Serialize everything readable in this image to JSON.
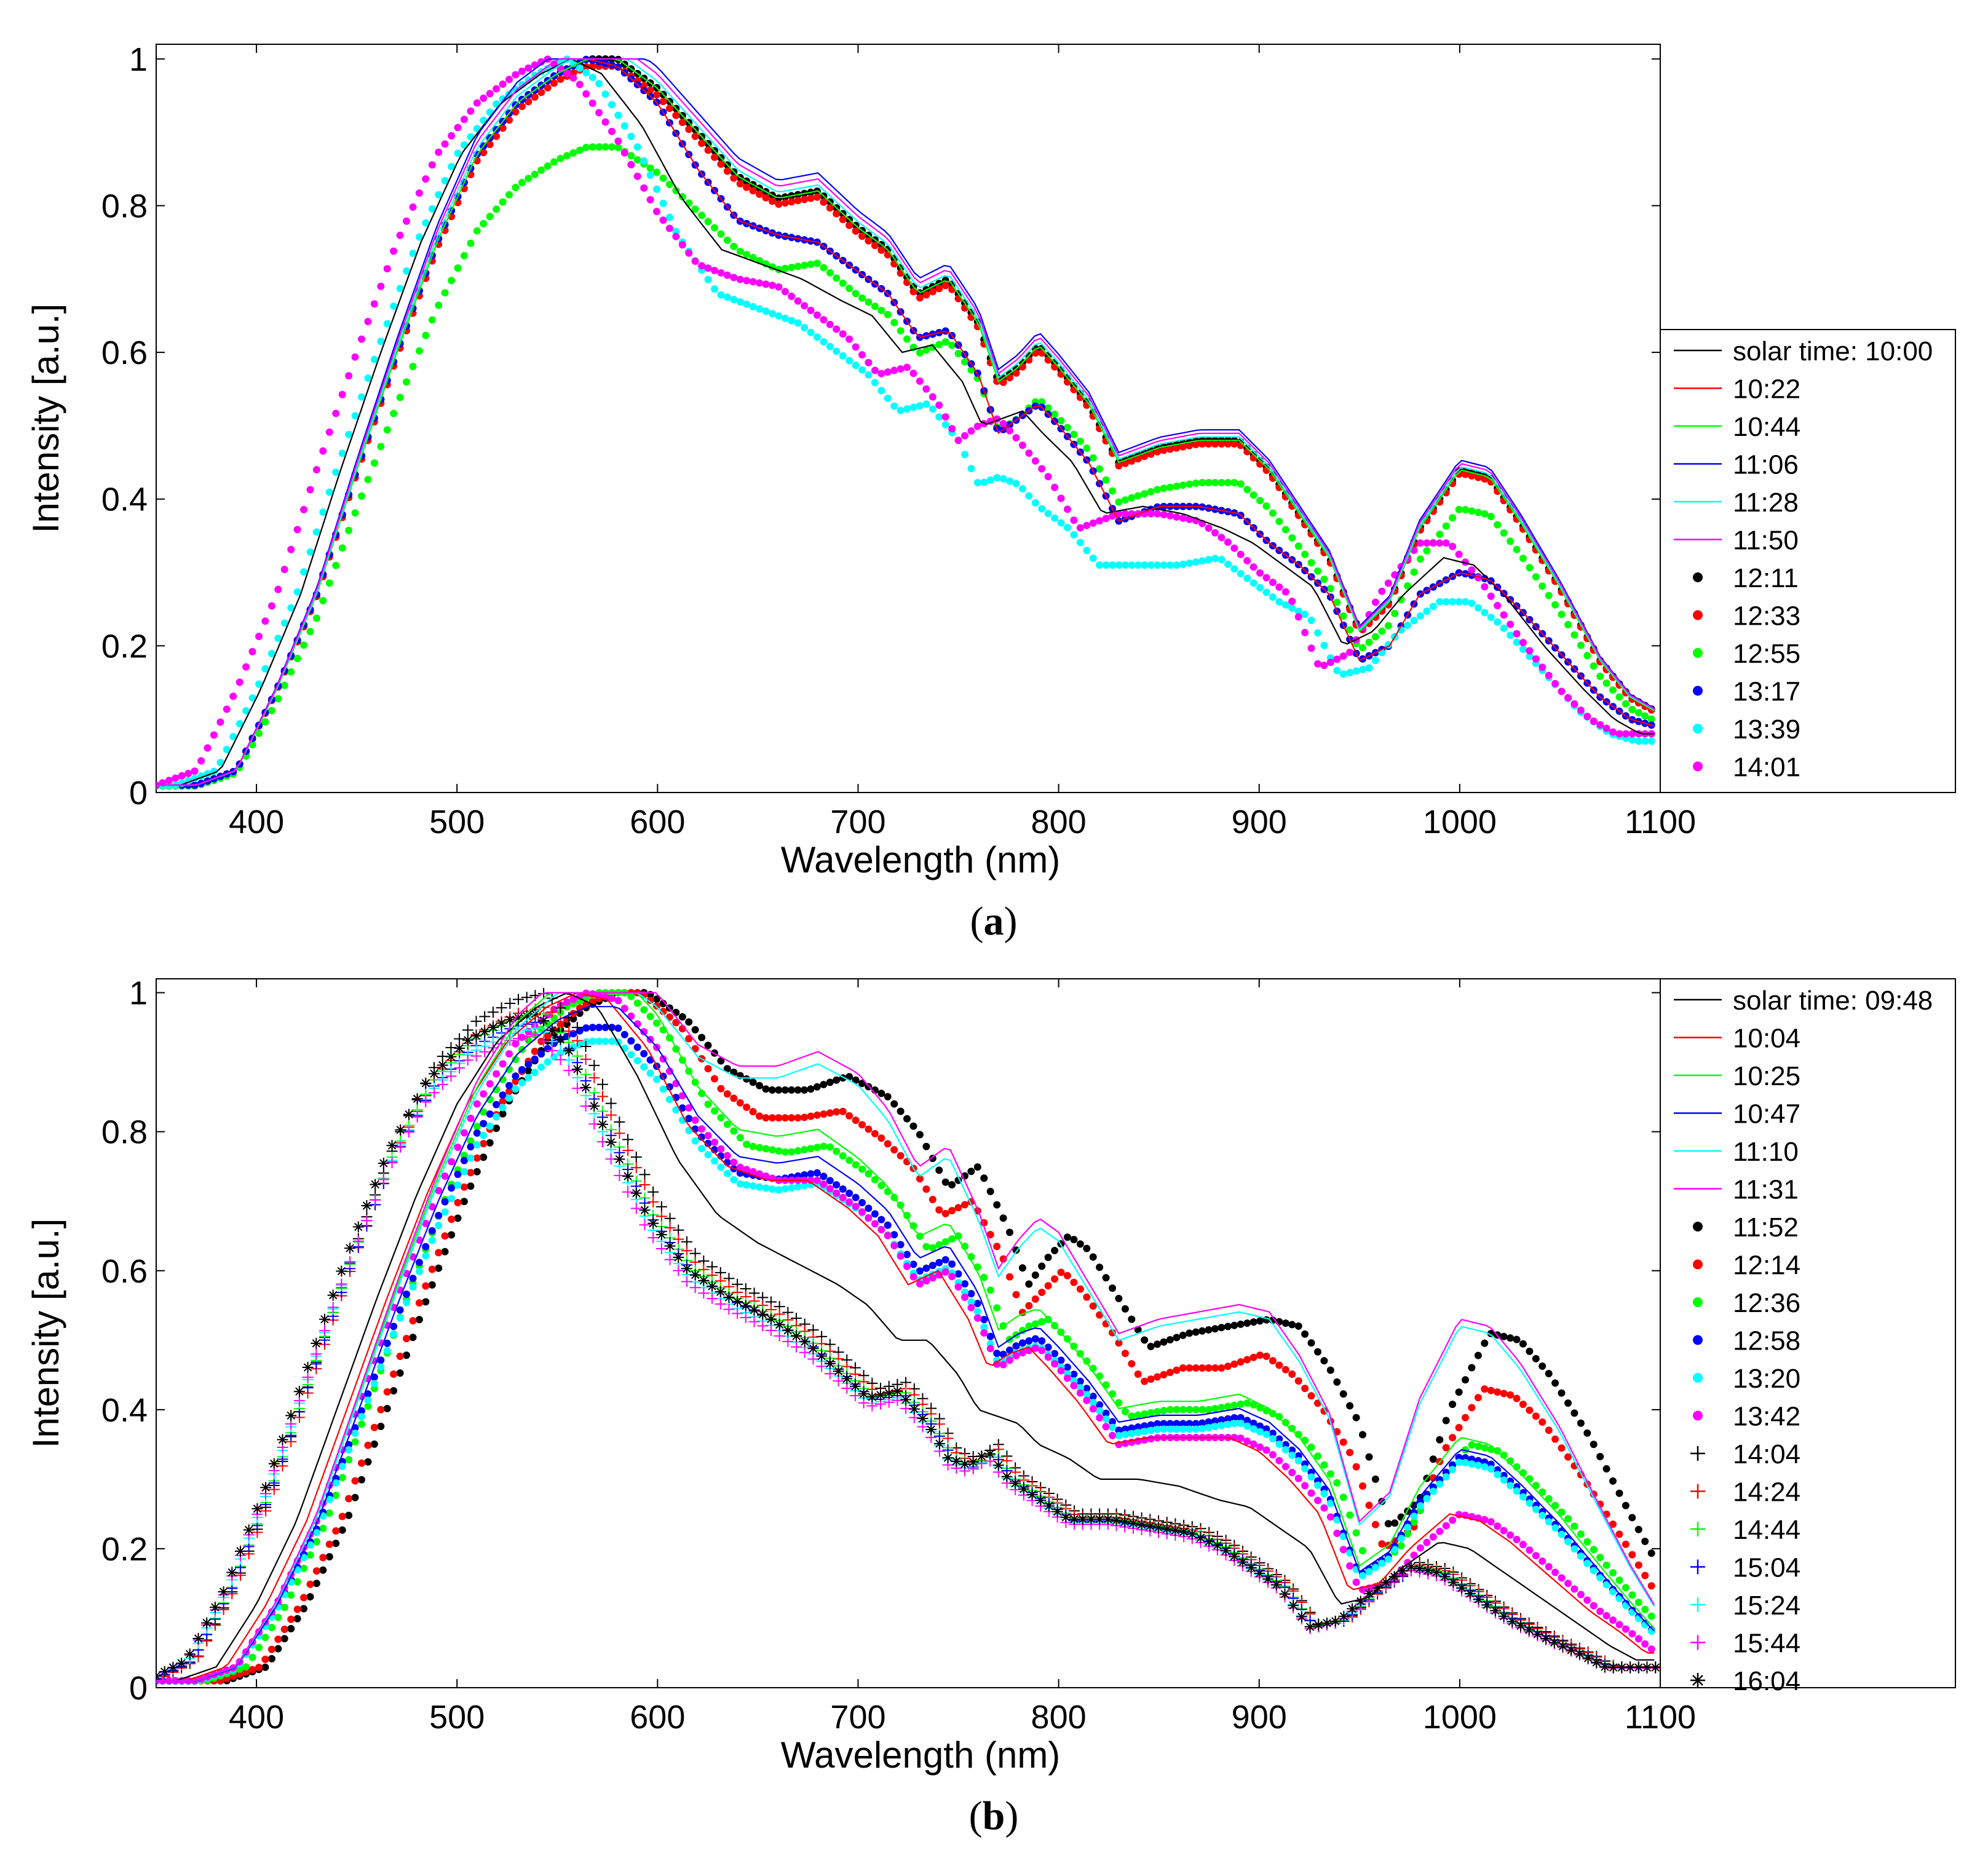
{
  "chart_data": [
    {
      "type": "line",
      "panel_label": "a",
      "xlabel": "Wavelength (nm)",
      "ylabel": "Intensity [a.u.]",
      "xlim": [
        350,
        1100
      ],
      "ylim": [
        0,
        1.02
      ],
      "xticks": [
        400,
        500,
        600,
        700,
        800,
        900,
        1000,
        1100
      ],
      "yticks": [
        0,
        0.2,
        0.4,
        0.6,
        0.8,
        1
      ],
      "ytick_labels": [
        "0",
        "0.2",
        "0.4",
        "0.6",
        "0.8",
        "1"
      ],
      "legend_position": "right",
      "x": [
        350,
        370,
        390,
        410,
        430,
        450,
        470,
        490,
        510,
        530,
        550,
        565,
        580,
        600,
        620,
        640,
        660,
        680,
        700,
        715,
        730,
        745,
        760,
        770,
        780,
        790,
        800,
        815,
        830,
        850,
        870,
        890,
        905,
        920,
        935,
        950,
        965,
        980,
        1000,
        1015,
        1030,
        1050,
        1070,
        1085,
        1098
      ],
      "series": [
        {
          "name": "solar time: 10:00",
          "color": "#000000",
          "style": "line",
          "scale": 1.0,
          "shift": -8,
          "shape": "early"
        },
        {
          "name": "10:22",
          "color": "#ff0000",
          "style": "line",
          "scale": 1.0,
          "shift": 0,
          "shape": "mid"
        },
        {
          "name": "10:44",
          "color": "#00ff00",
          "style": "line",
          "scale": 1.0,
          "shift": 0,
          "shape": "high"
        },
        {
          "name": "11:06",
          "color": "#0000ff",
          "style": "line",
          "scale": 1.03,
          "shift": 0,
          "shape": "high"
        },
        {
          "name": "11:28",
          "color": "#00ffff",
          "style": "line",
          "scale": 1.01,
          "shift": 0,
          "shape": "high"
        },
        {
          "name": "11:50",
          "color": "#ff00ff",
          "style": "line",
          "scale": 1.02,
          "shift": 0,
          "shape": "high"
        },
        {
          "name": "12:11",
          "color": "#000000",
          "style": "dot",
          "scale": 1.0,
          "shift": 0,
          "shape": "high"
        },
        {
          "name": "12:33",
          "color": "#ff0000",
          "style": "dot",
          "scale": 0.99,
          "shift": 0,
          "shape": "high"
        },
        {
          "name": "12:55",
          "color": "#00ff00",
          "style": "dot",
          "scale": 0.88,
          "shift": 0,
          "shape": "high"
        },
        {
          "name": "13:17",
          "color": "#0000ff",
          "style": "dot",
          "scale": 1.0,
          "shift": 0,
          "shape": "mid"
        },
        {
          "name": "13:39",
          "color": "#00ffff",
          "style": "dot",
          "scale": 1.0,
          "shift": -10,
          "shape": "low"
        },
        {
          "name": "14:01",
          "color": "#ff00ff",
          "style": "dot",
          "scale": 1.0,
          "shift": -20,
          "shape": "lowmid"
        }
      ],
      "shapes": {
        "high": [
          0.01,
          0.01,
          0.03,
          0.14,
          0.27,
          0.44,
          0.6,
          0.75,
          0.87,
          0.94,
          0.98,
          1.0,
          1.0,
          0.96,
          0.9,
          0.84,
          0.81,
          0.82,
          0.77,
          0.74,
          0.68,
          0.7,
          0.64,
          0.56,
          0.58,
          0.61,
          0.58,
          0.53,
          0.45,
          0.47,
          0.48,
          0.48,
          0.44,
          0.38,
          0.32,
          0.22,
          0.26,
          0.36,
          0.44,
          0.43,
          0.37,
          0.28,
          0.18,
          0.13,
          0.11
        ],
        "mid": [
          0.01,
          0.01,
          0.03,
          0.14,
          0.27,
          0.44,
          0.6,
          0.75,
          0.87,
          0.94,
          0.98,
          1.0,
          0.99,
          0.94,
          0.85,
          0.78,
          0.76,
          0.75,
          0.71,
          0.68,
          0.62,
          0.63,
          0.57,
          0.49,
          0.51,
          0.53,
          0.5,
          0.45,
          0.37,
          0.39,
          0.39,
          0.38,
          0.34,
          0.31,
          0.27,
          0.18,
          0.2,
          0.27,
          0.3,
          0.29,
          0.25,
          0.19,
          0.13,
          0.1,
          0.09
        ],
        "early": [
          0.01,
          0.01,
          0.03,
          0.14,
          0.27,
          0.44,
          0.6,
          0.75,
          0.87,
          0.94,
          0.98,
          1.0,
          0.98,
          0.91,
          0.81,
          0.74,
          0.72,
          0.7,
          0.67,
          0.65,
          0.6,
          0.61,
          0.56,
          0.5,
          0.51,
          0.52,
          0.49,
          0.45,
          0.38,
          0.39,
          0.38,
          0.36,
          0.34,
          0.31,
          0.28,
          0.2,
          0.22,
          0.27,
          0.32,
          0.31,
          0.27,
          0.2,
          0.14,
          0.1,
          0.08
        ],
        "low": [
          0.01,
          0.01,
          0.03,
          0.14,
          0.27,
          0.44,
          0.6,
          0.75,
          0.87,
          0.94,
          0.98,
          1.0,
          0.97,
          0.88,
          0.76,
          0.68,
          0.66,
          0.64,
          0.6,
          0.57,
          0.52,
          0.53,
          0.48,
          0.42,
          0.43,
          0.42,
          0.39,
          0.36,
          0.31,
          0.31,
          0.31,
          0.32,
          0.29,
          0.26,
          0.24,
          0.16,
          0.17,
          0.22,
          0.26,
          0.26,
          0.23,
          0.17,
          0.11,
          0.08,
          0.07
        ],
        "lowmid": [
          0.01,
          0.01,
          0.03,
          0.14,
          0.27,
          0.44,
          0.6,
          0.75,
          0.87,
          0.94,
          0.98,
          1.0,
          0.97,
          0.89,
          0.79,
          0.72,
          0.7,
          0.69,
          0.65,
          0.62,
          0.57,
          0.58,
          0.53,
          0.48,
          0.5,
          0.51,
          0.48,
          0.43,
          0.36,
          0.38,
          0.38,
          0.37,
          0.34,
          0.3,
          0.27,
          0.17,
          0.19,
          0.27,
          0.34,
          0.34,
          0.29,
          0.21,
          0.14,
          0.1,
          0.08
        ]
      }
    },
    {
      "type": "line",
      "panel_label": "b",
      "xlabel": "Wavelength (nm)",
      "ylabel": "Intensity [a.u.]",
      "xlim": [
        350,
        1100
      ],
      "ylim": [
        0,
        1.02
      ],
      "xticks": [
        400,
        500,
        600,
        700,
        800,
        900,
        1000,
        1100
      ],
      "yticks": [
        0,
        0.2,
        0.4,
        0.6,
        0.8,
        1
      ],
      "ytick_labels": [
        "0",
        "0.2",
        "0.4",
        "0.6",
        "0.8",
        "1"
      ],
      "legend_position": "right",
      "x": [
        350,
        370,
        390,
        410,
        430,
        450,
        470,
        490,
        510,
        530,
        550,
        565,
        580,
        600,
        620,
        640,
        660,
        680,
        700,
        715,
        730,
        745,
        760,
        770,
        780,
        790,
        800,
        815,
        830,
        850,
        870,
        890,
        905,
        920,
        935,
        950,
        965,
        980,
        1000,
        1015,
        1030,
        1050,
        1070,
        1085,
        1098
      ],
      "series": [
        {
          "name": "solar time: 09:48",
          "color": "#000000",
          "style": "line",
          "scale": 1.0,
          "shift": -10,
          "shape": "low"
        },
        {
          "name": "10:04",
          "color": "#ff0000",
          "style": "line",
          "scale": 1.0,
          "shift": -5,
          "shape": "lowmid"
        },
        {
          "name": "10:25",
          "color": "#00ff00",
          "style": "line",
          "scale": 1.03,
          "shift": 0,
          "shape": "mid"
        },
        {
          "name": "10:47",
          "color": "#0000ff",
          "style": "line",
          "scale": 0.98,
          "shift": 0,
          "shape": "mid"
        },
        {
          "name": "11:10",
          "color": "#00ffff",
          "style": "line",
          "scale": 1.02,
          "shift": 0,
          "shape": "high"
        },
        {
          "name": "11:31",
          "color": "#ff00ff",
          "style": "line",
          "scale": 1.04,
          "shift": 0,
          "shape": "high"
        },
        {
          "name": "11:52",
          "color": "#000000",
          "style": "dot",
          "scale": 1.0,
          "shift": 15,
          "shape": "high"
        },
        {
          "name": "12:14",
          "color": "#ff0000",
          "style": "dot",
          "scale": 1.0,
          "shift": 12,
          "shape": "midhigh"
        },
        {
          "name": "12:36",
          "color": "#00ff00",
          "style": "dot",
          "scale": 1.0,
          "shift": 5,
          "shape": "mid"
        },
        {
          "name": "12:58",
          "color": "#0000ff",
          "style": "dot",
          "scale": 0.95,
          "shift": 0,
          "shape": "mid"
        },
        {
          "name": "13:20",
          "color": "#00ffff",
          "style": "dot",
          "scale": 0.93,
          "shift": 0,
          "shape": "mid"
        },
        {
          "name": "13:42",
          "color": "#ff00ff",
          "style": "dot",
          "scale": 1.0,
          "shift": 0,
          "shape": "lowmid"
        },
        {
          "name": "14:04",
          "color": "#000000",
          "style": "plus",
          "scale": 1.0,
          "shift": -20,
          "shape": "late"
        },
        {
          "name": "14:24",
          "color": "#ff0000",
          "style": "plus",
          "scale": 0.98,
          "shift": -20,
          "shape": "late"
        },
        {
          "name": "14:44",
          "color": "#00ff00",
          "style": "plus",
          "scale": 0.97,
          "shift": -22,
          "shape": "late"
        },
        {
          "name": "15:04",
          "color": "#0000ff",
          "style": "plus",
          "scale": 0.96,
          "shift": -22,
          "shape": "late"
        },
        {
          "name": "15:24",
          "color": "#00ffff",
          "style": "plus",
          "scale": 0.95,
          "shift": -24,
          "shape": "late"
        },
        {
          "name": "15:44",
          "color": "#ff00ff",
          "style": "plus",
          "scale": 0.94,
          "shift": -25,
          "shape": "late"
        },
        {
          "name": "16:04",
          "color": "#000000",
          "style": "star",
          "scale": 0.97,
          "shift": -25,
          "shape": "late"
        }
      ],
      "shapes": {
        "high": [
          0.01,
          0.01,
          0.03,
          0.12,
          0.24,
          0.4,
          0.56,
          0.71,
          0.84,
          0.93,
          0.98,
          1.0,
          1.0,
          0.96,
          0.89,
          0.86,
          0.86,
          0.88,
          0.85,
          0.8,
          0.72,
          0.75,
          0.66,
          0.58,
          0.62,
          0.65,
          0.63,
          0.56,
          0.49,
          0.51,
          0.52,
          0.53,
          0.52,
          0.46,
          0.38,
          0.23,
          0.27,
          0.4,
          0.51,
          0.5,
          0.45,
          0.36,
          0.25,
          0.17,
          0.11
        ],
        "midhigh": [
          0.01,
          0.01,
          0.03,
          0.12,
          0.24,
          0.4,
          0.56,
          0.71,
          0.84,
          0.93,
          0.98,
          1.0,
          1.0,
          0.95,
          0.86,
          0.82,
          0.82,
          0.83,
          0.79,
          0.75,
          0.68,
          0.7,
          0.62,
          0.54,
          0.57,
          0.6,
          0.57,
          0.51,
          0.44,
          0.46,
          0.46,
          0.48,
          0.45,
          0.4,
          0.33,
          0.2,
          0.23,
          0.34,
          0.43,
          0.42,
          0.38,
          0.3,
          0.21,
          0.14,
          0.09
        ],
        "mid": [
          0.01,
          0.01,
          0.03,
          0.12,
          0.24,
          0.4,
          0.56,
          0.71,
          0.84,
          0.93,
          0.98,
          1.0,
          1.0,
          0.94,
          0.84,
          0.78,
          0.77,
          0.78,
          0.74,
          0.7,
          0.63,
          0.65,
          0.58,
          0.5,
          0.52,
          0.53,
          0.5,
          0.45,
          0.39,
          0.4,
          0.4,
          0.41,
          0.39,
          0.35,
          0.29,
          0.17,
          0.2,
          0.28,
          0.35,
          0.34,
          0.3,
          0.24,
          0.17,
          0.12,
          0.08
        ],
        "lowmid": [
          0.01,
          0.01,
          0.03,
          0.12,
          0.24,
          0.4,
          0.56,
          0.71,
          0.84,
          0.93,
          0.98,
          1.0,
          0.99,
          0.92,
          0.81,
          0.75,
          0.73,
          0.73,
          0.69,
          0.65,
          0.58,
          0.6,
          0.53,
          0.46,
          0.48,
          0.49,
          0.46,
          0.41,
          0.35,
          0.36,
          0.36,
          0.36,
          0.34,
          0.3,
          0.25,
          0.14,
          0.15,
          0.2,
          0.25,
          0.24,
          0.21,
          0.16,
          0.11,
          0.08,
          0.05
        ],
        "low": [
          0.01,
          0.01,
          0.03,
          0.12,
          0.24,
          0.4,
          0.56,
          0.71,
          0.84,
          0.93,
          0.98,
          1.0,
          0.98,
          0.88,
          0.76,
          0.68,
          0.64,
          0.61,
          0.58,
          0.55,
          0.5,
          0.5,
          0.45,
          0.4,
          0.39,
          0.38,
          0.35,
          0.33,
          0.3,
          0.3,
          0.29,
          0.27,
          0.26,
          0.23,
          0.2,
          0.12,
          0.13,
          0.17,
          0.21,
          0.2,
          0.17,
          0.13,
          0.09,
          0.06,
          0.04
        ],
        "late": [
          0.02,
          0.01,
          0.04,
          0.15,
          0.3,
          0.47,
          0.64,
          0.79,
          0.9,
          0.96,
          0.99,
          1.0,
          0.95,
          0.82,
          0.7,
          0.62,
          0.58,
          0.55,
          0.51,
          0.47,
          0.43,
          0.44,
          0.39,
          0.34,
          0.33,
          0.35,
          0.31,
          0.28,
          0.25,
          0.25,
          0.24,
          0.23,
          0.21,
          0.18,
          0.15,
          0.09,
          0.1,
          0.14,
          0.18,
          0.17,
          0.14,
          0.1,
          0.07,
          0.05,
          0.03
        ]
      }
    }
  ]
}
